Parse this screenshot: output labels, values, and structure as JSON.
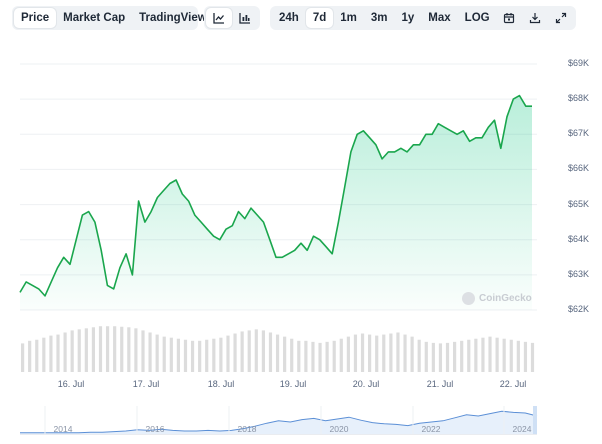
{
  "toolbar": {
    "view_tabs": [
      "Price",
      "Market Cap",
      "TradingView"
    ],
    "active_view": "Price",
    "chart_type_icons": [
      "line-chart-icon",
      "candlestick-chart-icon"
    ],
    "range_tabs": [
      "24h",
      "7d",
      "1m",
      "3m",
      "1y",
      "Max",
      "LOG"
    ],
    "active_range": "7d",
    "action_icons": [
      "calendar-icon",
      "download-icon",
      "expand-icon"
    ]
  },
  "watermark": "CoinGecko",
  "colors": {
    "line": "#16c784",
    "line_dark": "#1aa64d",
    "volume": "#dcdcdc"
  },
  "chart_data": {
    "type": "area",
    "x_ticks": [
      "16. Jul",
      "17. Jul",
      "18. Jul",
      "19. Jul",
      "20. Jul",
      "21. Jul",
      "22. Jul"
    ],
    "y_ticks": [
      "$62K",
      "$63K",
      "$64K",
      "$65K",
      "$66K",
      "$67K",
      "$68K",
      "$69K"
    ],
    "ylim": [
      62000,
      69000
    ],
    "grid": true,
    "price": [
      62500,
      62800,
      62700,
      62600,
      62400,
      62800,
      63200,
      63500,
      63300,
      64000,
      64700,
      64800,
      64500,
      63700,
      62700,
      62600,
      63200,
      63600,
      63000,
      65100,
      64500,
      64800,
      65200,
      65400,
      65600,
      65700,
      65300,
      65100,
      64700,
      64500,
      64300,
      64100,
      64000,
      64300,
      64400,
      64800,
      64600,
      64900,
      64700,
      64500,
      64000,
      63500,
      63500,
      63600,
      63700,
      63900,
      63700,
      64100,
      64000,
      63800,
      63600,
      64500,
      65500,
      66500,
      67000,
      67100,
      66900,
      66700,
      66300,
      66500,
      66500,
      66600,
      66500,
      66700,
      66700,
      67000,
      67000,
      67300,
      67200,
      67100,
      67000,
      67100,
      66800,
      66900,
      66900,
      67200,
      67400,
      66600,
      67500,
      68000,
      68100,
      67800,
      67800
    ],
    "volume": [
      0.55,
      0.6,
      0.62,
      0.66,
      0.7,
      0.72,
      0.76,
      0.8,
      0.82,
      0.84,
      0.86,
      0.88,
      0.88,
      0.88,
      0.87,
      0.86,
      0.84,
      0.8,
      0.76,
      0.72,
      0.68,
      0.66,
      0.64,
      0.62,
      0.6,
      0.6,
      0.62,
      0.64,
      0.66,
      0.7,
      0.74,
      0.78,
      0.8,
      0.82,
      0.8,
      0.76,
      0.72,
      0.68,
      0.64,
      0.6,
      0.6,
      0.58,
      0.56,
      0.58,
      0.6,
      0.64,
      0.68,
      0.72,
      0.74,
      0.72,
      0.7,
      0.72,
      0.74,
      0.76,
      0.72,
      0.68,
      0.62,
      0.58,
      0.56,
      0.55,
      0.56,
      0.58,
      0.6,
      0.62,
      0.64,
      0.66,
      0.68,
      0.66,
      0.64,
      0.62,
      0.6,
      0.58,
      0.56
    ],
    "navigator": {
      "x_ticks": [
        "2014",
        "2016",
        "2018",
        "2020",
        "2022",
        "2024"
      ],
      "values": [
        0.02,
        0.02,
        0.02,
        0.02,
        0.02,
        0.02,
        0.03,
        0.03,
        0.04,
        0.05,
        0.07,
        0.06,
        0.08,
        0.06,
        0.05,
        0.05,
        0.06,
        0.05,
        0.06,
        0.09,
        0.13,
        0.18,
        0.22,
        0.2,
        0.24,
        0.26,
        0.22,
        0.25,
        0.28,
        0.23,
        0.19,
        0.17,
        0.16,
        0.14,
        0.18,
        0.2,
        0.22,
        0.27,
        0.32,
        0.3,
        0.34,
        0.38,
        0.36,
        0.35,
        0.3
      ]
    }
  }
}
